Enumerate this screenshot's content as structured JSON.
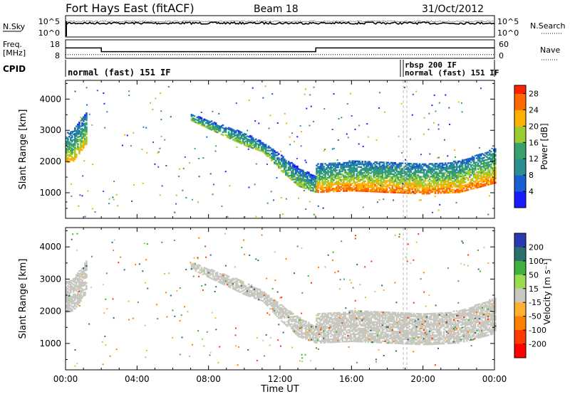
{
  "header": {
    "station": "Fort Hays East (fitACF)",
    "beam": "Beam 18",
    "date": "31/Oct/2012"
  },
  "noise_panel": {
    "left_label": "N.Sky",
    "right_label": "N.Search",
    "left_ticks": [
      "10^5",
      "10^0"
    ],
    "right_ticks": [
      "10^5",
      "10^0"
    ]
  },
  "freq_panel": {
    "left_label_1": "Freq.",
    "left_label_2": "[MHz]",
    "right_label": "Nave",
    "left_ticks": [
      "18",
      "8"
    ],
    "right_ticks": [
      "60",
      "0"
    ]
  },
  "cpid_panel": {
    "label": "CPID",
    "mode_1": "normal (fast) 151 IF",
    "mode_2": "rbsp 200 IF",
    "mode_3": "normal (fast) 151 IF"
  },
  "x_axis": {
    "label": "Time UT",
    "ticks": [
      "00:00",
      "04:00",
      "08:00",
      "12:00",
      "16:00",
      "20:00",
      "00:00"
    ]
  },
  "power_panel": {
    "ylabel": "Slant Range [km]",
    "y_ticks": [
      "4000",
      "3000",
      "2000",
      "1000"
    ],
    "colorbar_label": "Power [dB]",
    "colorbar_ticks": [
      "28",
      "24",
      "20",
      "16",
      "12",
      "8",
      "4"
    ]
  },
  "velocity_panel": {
    "ylabel": "Slant Range [km]",
    "y_ticks": [
      "4000",
      "3000",
      "2000",
      "1000"
    ],
    "colorbar_label": "Velocity [m s⁻¹]",
    "colorbar_ticks": [
      "200",
      "100",
      "50",
      "15",
      "-15",
      "-50",
      "-100",
      "-200"
    ]
  },
  "chart_data": [
    {
      "type": "line",
      "title": "",
      "xlabel": "Time UT",
      "ylabel": "N.Sky",
      "x_range_hours": [
        0,
        24
      ],
      "y_scale": "log",
      "note": "noise level trace near top of range throughout the day"
    },
    {
      "type": "line",
      "xlabel": "Time UT",
      "ylabel": "Freq. [MHz]",
      "ylim": [
        8,
        18
      ],
      "series": [
        {
          "name": "Freq.",
          "x": [
            0.0,
            2.0,
            2.0,
            14.0,
            14.0,
            24.0
          ],
          "values": [
            13.6,
            13.6,
            11.6,
            11.6,
            13.6,
            13.6
          ]
        },
        {
          "name": "Nave",
          "x": [
            0,
            24
          ],
          "values": [
            10,
            10
          ]
        }
      ]
    },
    {
      "type": "heatmap",
      "xlabel": "Time UT",
      "ylabel": "Slant Range [km]",
      "x_range_hours": [
        0,
        24
      ],
      "ylim": [
        180,
        4600
      ],
      "colorbar": "Power [dB]",
      "colorbar_range": [
        0,
        30
      ],
      "bands": [
        {
          "name": "",
          "x_hours": [
            0.0,
            0.4,
            0.8,
            1.2
          ],
          "range_low_km": [
            1950,
            2000,
            2300,
            2600
          ],
          "range_high_km": [
            2900,
            3000,
            3300,
            3600
          ],
          "power_db": 22
        },
        {
          "name": "",
          "x_hours": [
            7.0,
            8.5,
            10.0,
            11.0,
            12.0,
            13.0,
            14.0
          ],
          "range_low_km": [
            3300,
            2900,
            2500,
            2300,
            1700,
            1200,
            1000
          ],
          "range_high_km": [
            3500,
            3200,
            2900,
            2600,
            2200,
            1800,
            1500
          ],
          "power_db": 18
        },
        {
          "name": "",
          "x_hours": [
            14.0,
            16.0,
            18.0,
            20.0,
            22.0,
            24.0
          ],
          "range_low_km": [
            1000,
            1050,
            1000,
            950,
            1000,
            1300
          ],
          "range_high_km": [
            1900,
            2000,
            1950,
            1900,
            2000,
            2400
          ],
          "power_db": 26
        }
      ]
    },
    {
      "type": "heatmap",
      "xlabel": "Time UT",
      "ylabel": "Slant Range [km]",
      "x_range_hours": [
        0,
        24
      ],
      "ylim": [
        180,
        4600
      ],
      "colorbar": "Velocity [m s⁻¹]",
      "colorbar_range": [
        -250,
        250
      ],
      "bands": [
        {
          "name": "",
          "x_hours": [
            0.0,
            0.4,
            0.8,
            1.2
          ],
          "range_low_km": [
            1950,
            2000,
            2300,
            2600
          ],
          "range_high_km": [
            2900,
            3000,
            3300,
            3600
          ],
          "velocity": 0
        },
        {
          "name": "",
          "x_hours": [
            7.0,
            8.5,
            10.0,
            11.0,
            12.0,
            13.0,
            14.0
          ],
          "range_low_km": [
            3300,
            2900,
            2500,
            2300,
            1700,
            1200,
            1000
          ],
          "range_high_km": [
            3500,
            3200,
            2900,
            2600,
            2200,
            1800,
            1500
          ],
          "velocity": 0
        },
        {
          "name": "",
          "x_hours": [
            14.0,
            16.0,
            18.0,
            20.0,
            22.0,
            24.0
          ],
          "range_low_km": [
            1000,
            1050,
            1000,
            950,
            1000,
            1300
          ],
          "range_high_km": [
            1900,
            2000,
            1950,
            1900,
            2000,
            2400
          ],
          "velocity": 0
        }
      ]
    }
  ]
}
